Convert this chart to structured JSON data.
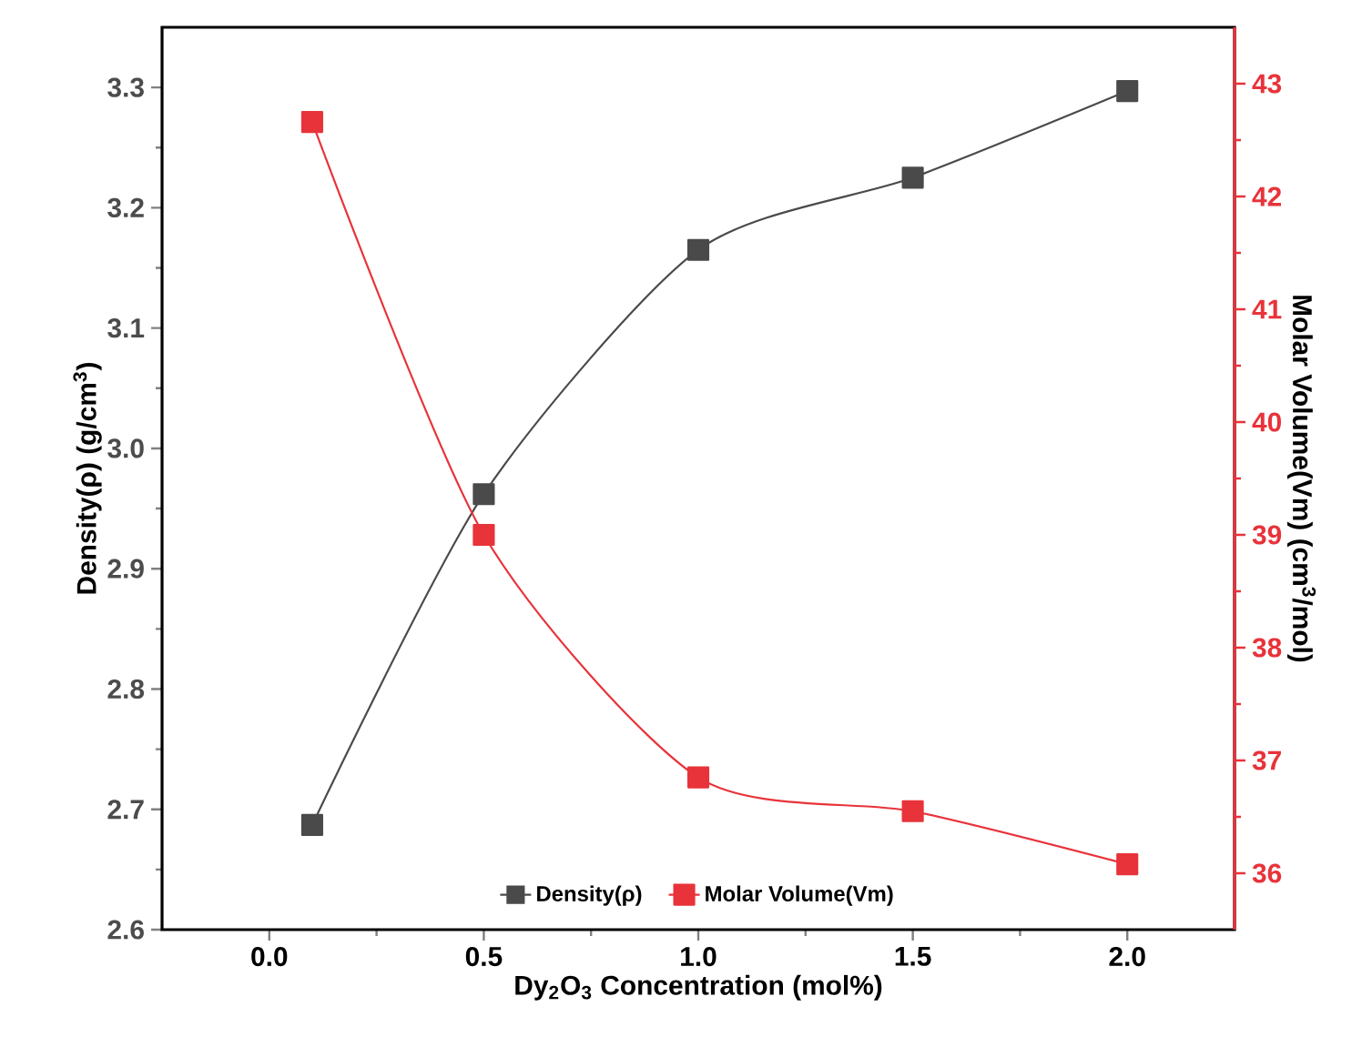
{
  "chart_data": {
    "type": "line",
    "xlabel": "Dy$_{2}$O$_{3}$ Concentration (mol%)",
    "ylabel": "Density(ρ) (g/cm$^{3}$)",
    "y2label": "Molar Volume(Vm) (cm$^{3}$/mol)",
    "x": [
      0.1,
      0.5,
      1.0,
      1.5,
      2.0
    ],
    "series": [
      {
        "name": "Density(ρ)",
        "color": "#4a4a4a",
        "values": [
          2.687,
          2.962,
          3.165,
          3.225,
          3.297
        ]
      },
      {
        "name": "Molar Volume(Vm)",
        "color": "#e8333a",
        "axis": "y2",
        "values": [
          42.66,
          39.0,
          36.85,
          36.55,
          36.08
        ]
      }
    ],
    "xlim": [
      -0.25,
      2.25
    ],
    "xticks": [
      {
        "value": 0,
        "label": "0.0"
      },
      0.5,
      {
        "value": 1,
        "label": "1.0"
      },
      1.5,
      {
        "value": 2,
        "label": "2.0"
      }
    ],
    "ylim": [
      2.6,
      3.35
    ],
    "yticks": [
      2.6,
      2.7,
      2.8,
      2.9,
      {
        "value": 3,
        "label": "3.0"
      },
      3.1,
      3.2,
      3.3
    ],
    "y2lim": [
      35.5,
      43.5
    ],
    "y2ticks": [
      36,
      37,
      38,
      39,
      40,
      41,
      42,
      43
    ],
    "marker": "square",
    "line_style": "solid",
    "legend": "bottom"
  }
}
